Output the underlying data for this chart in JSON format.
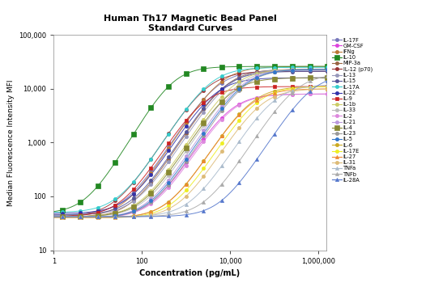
{
  "title_line1": "Human Th17 Magnetic Bead Panel",
  "title_line2": "Standard Curves",
  "xlabel": "Concentration (pg/mL)",
  "ylabel": "Median Fluorescence Intensity MFI",
  "xlim": [
    1,
    1500000
  ],
  "ylim": [
    10,
    100000
  ],
  "background_color": "#f5f5f5",
  "series": [
    {
      "name": "IL-17F",
      "color": "#7777bb",
      "marker": "o",
      "ms": 3,
      "ec50": 5000,
      "hill": 1.3,
      "bottom": 45,
      "top": 22000
    },
    {
      "name": "GM-CSF",
      "color": "#dd44dd",
      "marker": "o",
      "ms": 3,
      "ec50": 10000,
      "hill": 1.3,
      "bottom": 40,
      "top": 8000
    },
    {
      "name": "IFNg",
      "color": "#bb7733",
      "marker": "o",
      "ms": 3,
      "ec50": 6000,
      "hill": 1.3,
      "bottom": 40,
      "top": 26000
    },
    {
      "name": "IL-10",
      "color": "#228822",
      "marker": "s",
      "ms": 4,
      "ec50": 500,
      "hill": 1.4,
      "bottom": 48,
      "top": 26000
    },
    {
      "name": "MIP-3a",
      "color": "#996644",
      "marker": "o",
      "ms": 3,
      "ec50": 8000,
      "hill": 1.3,
      "bottom": 40,
      "top": 23000
    },
    {
      "name": "IL-12 (p70)",
      "color": "#993333",
      "marker": "o",
      "ms": 3,
      "ec50": 3000,
      "hill": 1.3,
      "bottom": 42,
      "top": 21000
    },
    {
      "name": "IL-13",
      "color": "#9999bb",
      "marker": "o",
      "ms": 3,
      "ec50": 9000,
      "hill": 1.3,
      "bottom": 45,
      "top": 23000
    },
    {
      "name": "IL-15",
      "color": "#555599",
      "marker": "o",
      "ms": 3,
      "ec50": 7000,
      "hill": 1.3,
      "bottom": 45,
      "top": 21000
    },
    {
      "name": "IL-17A",
      "color": "#33cccc",
      "marker": "o",
      "ms": 3,
      "ec50": 3500,
      "hill": 1.3,
      "bottom": 50,
      "top": 25000
    },
    {
      "name": "IL-22",
      "color": "#3333aa",
      "marker": "o",
      "ms": 3,
      "ec50": 4500,
      "hill": 1.3,
      "bottom": 48,
      "top": 16000
    },
    {
      "name": "IL-9",
      "color": "#cc2222",
      "marker": "s",
      "ms": 3,
      "ec50": 2500,
      "hill": 1.3,
      "bottom": 42,
      "top": 11000
    },
    {
      "name": "IL-1b",
      "color": "#cccc66",
      "marker": "o",
      "ms": 3,
      "ec50": 12000,
      "hill": 1.3,
      "bottom": 42,
      "top": 23000
    },
    {
      "name": "IL-33",
      "color": "#bbbbbb",
      "marker": "o",
      "ms": 3,
      "ec50": 15000,
      "hill": 1.3,
      "bottom": 42,
      "top": 23000
    },
    {
      "name": "IL-2",
      "color": "#dd88dd",
      "marker": "o",
      "ms": 3,
      "ec50": 11000,
      "hill": 1.3,
      "bottom": 40,
      "top": 8000
    },
    {
      "name": "IL-21",
      "color": "#bb99dd",
      "marker": "o",
      "ms": 3,
      "ec50": 18000,
      "hill": 1.3,
      "bottom": 40,
      "top": 23000
    },
    {
      "name": "IL-4",
      "color": "#888833",
      "marker": "s",
      "ms": 4,
      "ec50": 10000,
      "hill": 1.3,
      "bottom": 42,
      "top": 16000
    },
    {
      "name": "IL-23",
      "color": "#999999",
      "marker": "o",
      "ms": 3,
      "ec50": 22000,
      "hill": 1.3,
      "bottom": 40,
      "top": 23000
    },
    {
      "name": "IL-5",
      "color": "#3377cc",
      "marker": "o",
      "ms": 3,
      "ec50": 20000,
      "hill": 1.3,
      "bottom": 40,
      "top": 23000
    },
    {
      "name": "IL-6",
      "color": "#ccaa22",
      "marker": "o",
      "ms": 3,
      "ec50": 30000,
      "hill": 1.3,
      "bottom": 40,
      "top": 11000
    },
    {
      "name": "IL-17E",
      "color": "#eeee22",
      "marker": "o",
      "ms": 3,
      "ec50": 40000,
      "hill": 1.3,
      "bottom": 40,
      "top": 11000
    },
    {
      "name": "IL-27",
      "color": "#ee8833",
      "marker": "^",
      "ms": 3,
      "ec50": 28000,
      "hill": 1.3,
      "bottom": 40,
      "top": 10000
    },
    {
      "name": "IL-31",
      "color": "#ddbb77",
      "marker": "o",
      "ms": 3,
      "ec50": 50000,
      "hill": 1.3,
      "bottom": 40,
      "top": 10000
    },
    {
      "name": "TNFa",
      "color": "#aabbcc",
      "marker": "^",
      "ms": 3,
      "ec50": 100000,
      "hill": 1.3,
      "bottom": 42,
      "top": 12000
    },
    {
      "name": "TNFb",
      "color": "#aaaaaa",
      "marker": "^",
      "ms": 3,
      "ec50": 300000,
      "hill": 1.3,
      "bottom": 42,
      "top": 19000
    },
    {
      "name": "IL-28A",
      "color": "#5577cc",
      "marker": "^",
      "ms": 3,
      "ec50": 700000,
      "hill": 1.3,
      "bottom": 42,
      "top": 19000
    }
  ],
  "x_points": [
    1.6,
    4,
    10,
    25,
    64,
    160,
    400,
    1000,
    2500,
    6400,
    16000,
    40000,
    100000,
    250000,
    640000,
    1600000
  ]
}
